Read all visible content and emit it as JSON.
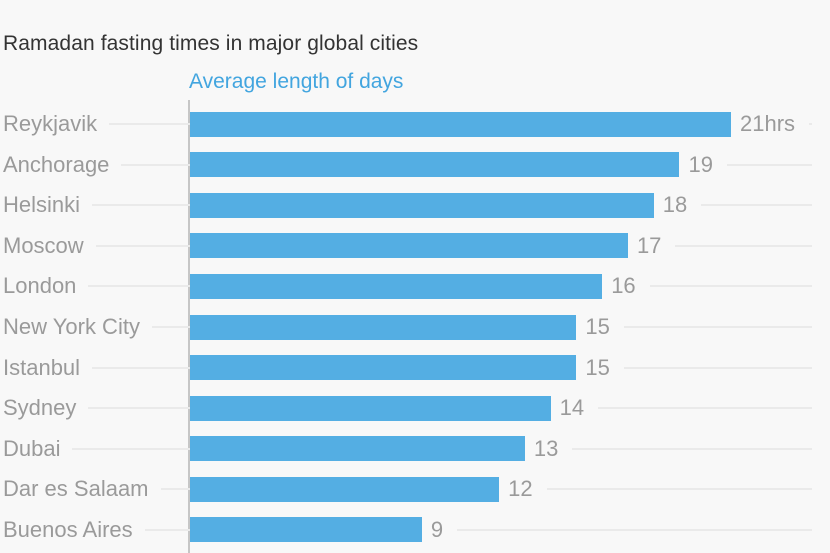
{
  "chart": {
    "title": "Ramadan fasting times in major global cities",
    "subtitle": "Average length of days"
  },
  "colors": {
    "background": "#F8F8F8",
    "bar": "#54AEE3",
    "subtitle_text": "#42A5DF",
    "title_text": "#333333",
    "label_text": "#9A9A9A",
    "axis_line": "#C6C6C6",
    "leader_line": "#EAEAEA"
  },
  "chart_data": {
    "type": "bar",
    "orientation": "horizontal",
    "title": "Ramadan fasting times in major global cities",
    "subtitle": "Average length of days",
    "categories": [
      "Reykjavik",
      "Anchorage",
      "Helsinki",
      "Moscow",
      "London",
      "New York City",
      "Istanbul",
      "Sydney",
      "Dubai",
      "Dar es Salaam",
      "Buenos Aires"
    ],
    "values": [
      21,
      19,
      18,
      17,
      16,
      15,
      15,
      14,
      13,
      12,
      9
    ],
    "value_labels": [
      "21hrs",
      "19",
      "18",
      "17",
      "16",
      "15",
      "15",
      "14",
      "13",
      "12",
      "9"
    ],
    "unit": "hrs",
    "xlabel": "",
    "ylabel": "",
    "xlim": [
      0,
      21
    ],
    "grid": false,
    "legend": false,
    "bar_color": "#54AEE3"
  }
}
